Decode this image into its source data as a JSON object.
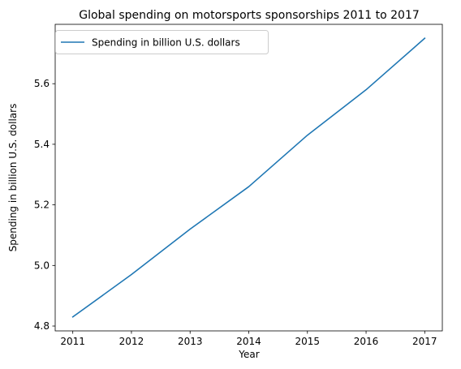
{
  "chart_data": {
    "type": "line",
    "title": "Global spending on motorsports sponsorships 2011 to 2017",
    "xlabel": "Year",
    "ylabel": "Spending in billion U.S. dollars",
    "x": [
      2011,
      2012,
      2013,
      2014,
      2015,
      2016,
      2017
    ],
    "series": [
      {
        "name": "Spending in billion U.S. dollars",
        "values": [
          4.83,
          4.97,
          5.12,
          5.26,
          5.43,
          5.58,
          5.75
        ],
        "color": "#1f77b4"
      }
    ],
    "xlim": [
      2010.7,
      2017.3
    ],
    "ylim": [
      4.784,
      5.796
    ],
    "yticks": [
      4.8,
      5.0,
      5.2,
      5.4,
      5.6
    ],
    "ytick_labels": [
      "4.8",
      "5.0",
      "5.2",
      "5.4",
      "5.6"
    ],
    "xticks": [
      2011,
      2012,
      2013,
      2014,
      2015,
      2016,
      2017
    ],
    "xtick_labels": [
      "2011",
      "2012",
      "2013",
      "2014",
      "2015",
      "2016",
      "2017"
    ],
    "legend": "top-left",
    "grid": false
  }
}
